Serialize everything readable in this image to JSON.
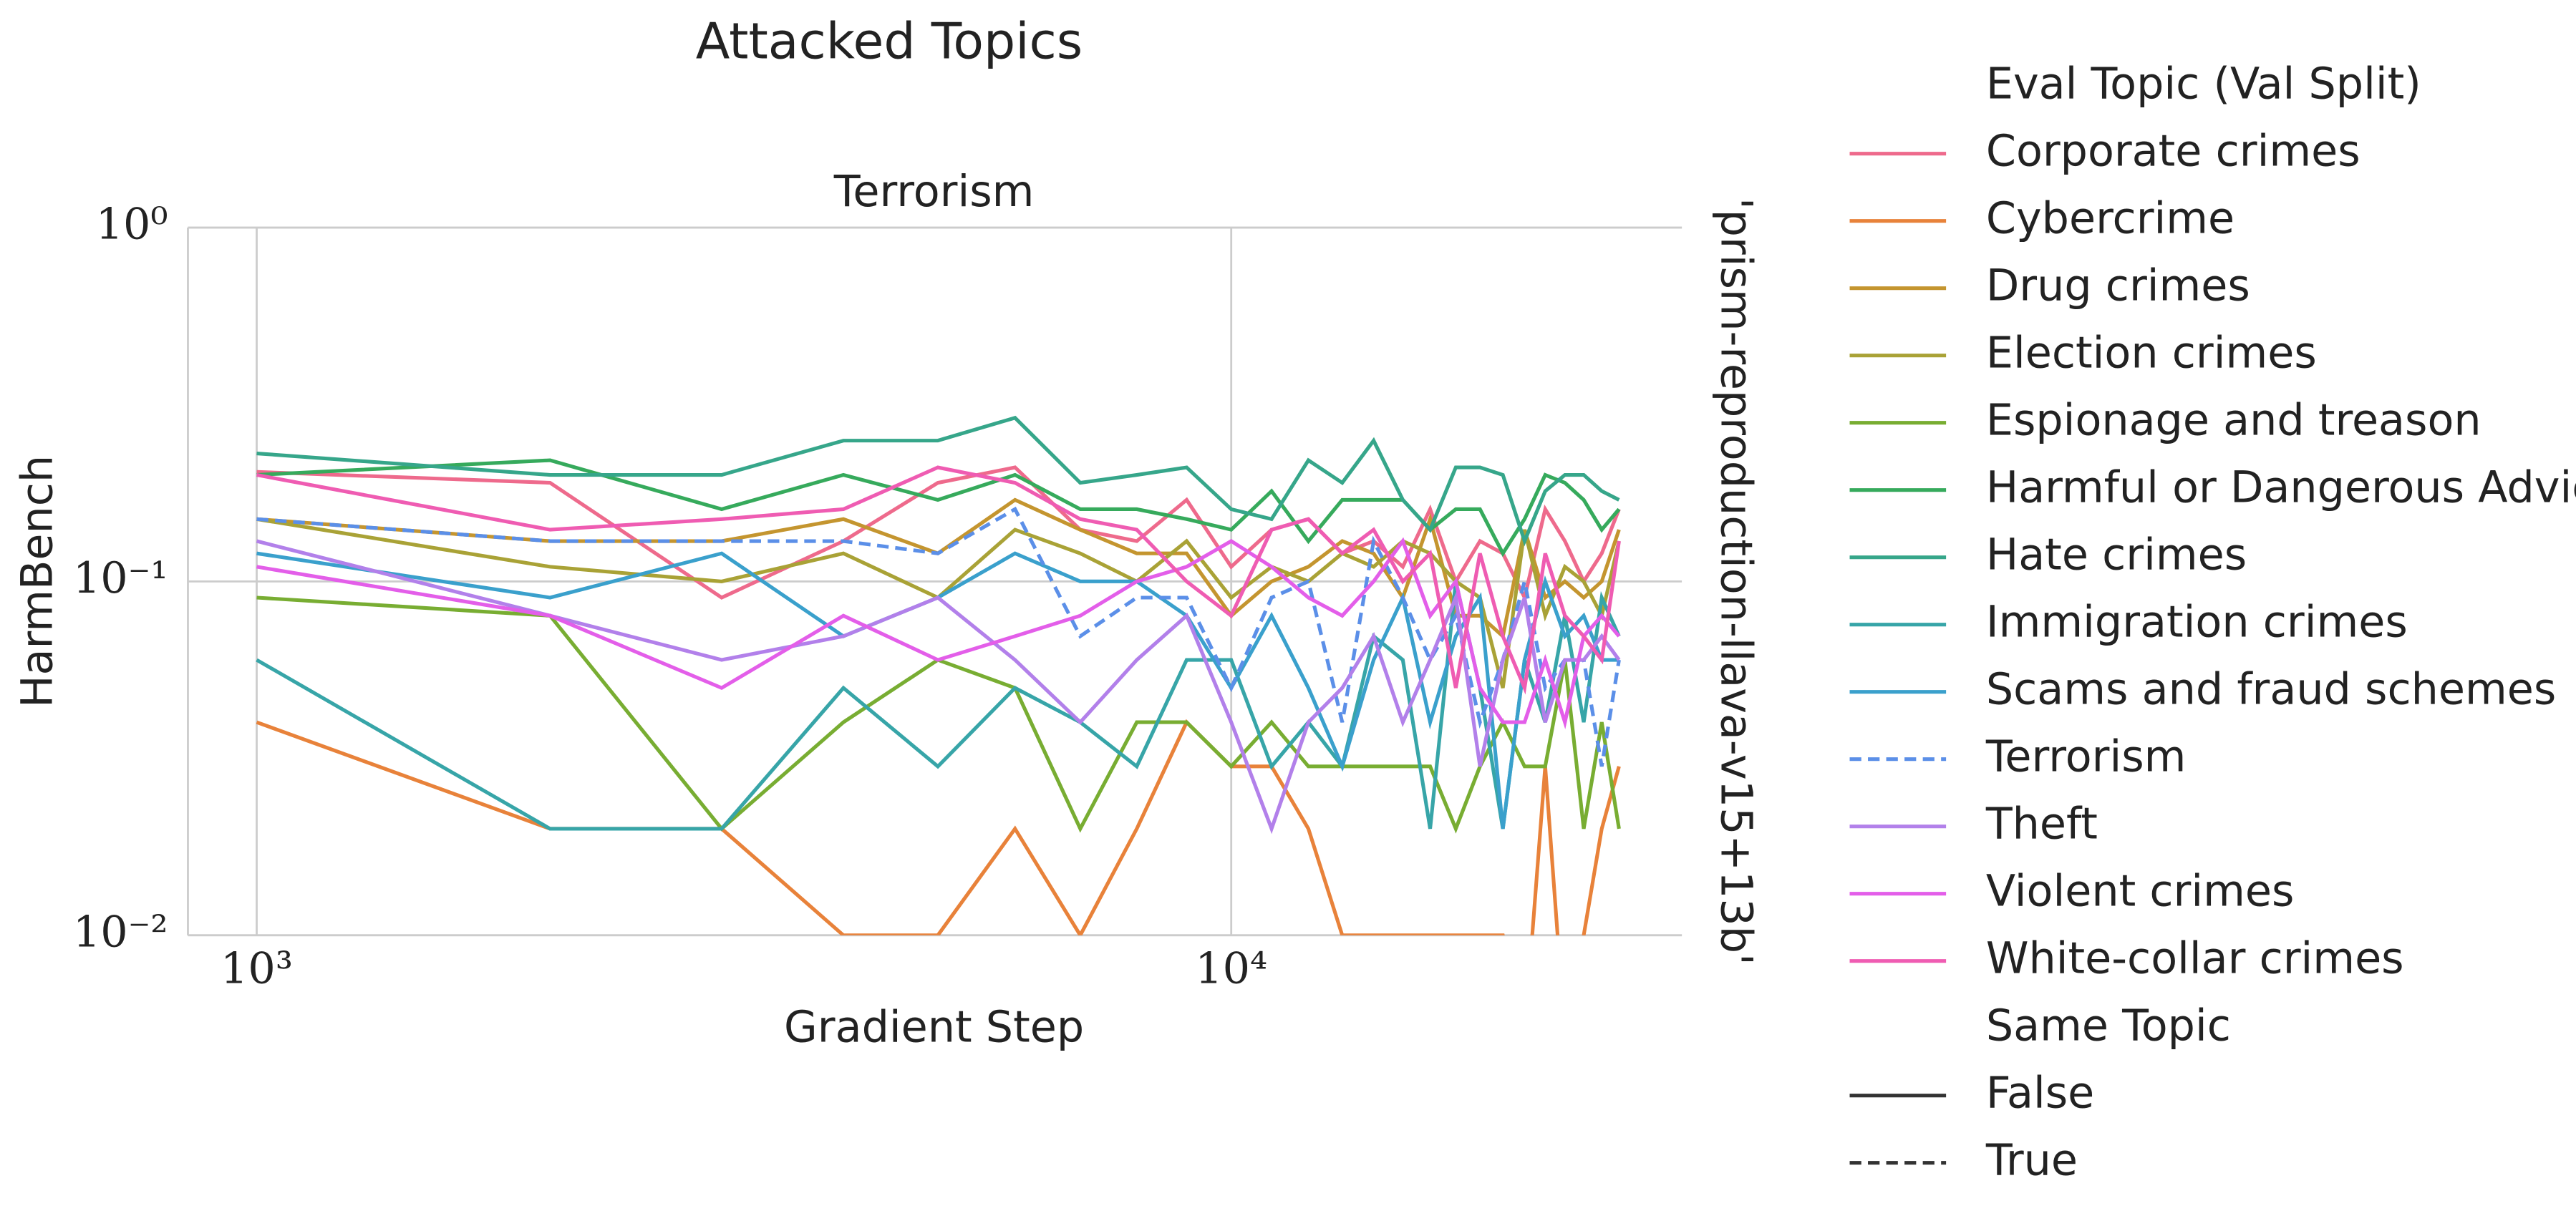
{
  "chart_data": {
    "type": "line",
    "title": "Attacked Topics",
    "subtitle": "Terrorism",
    "x_label": "Gradient Step",
    "y_label": "HarmBench",
    "right_label": "'prism-reproduction-llava-v15+13b'",
    "x_log": true,
    "y_log": true,
    "grid": true,
    "legend_position": "right",
    "legend_title": "Eval Topic (Val Split)",
    "style_legend": {
      "title": "Same Topic",
      "entries": [
        {
          "label": "False",
          "dashed": false
        },
        {
          "label": "True",
          "dashed": true
        }
      ]
    },
    "xlim": [
      850,
      29000
    ],
    "ylim": [
      0.01,
      1
    ],
    "xticks": [
      {
        "value": 1000,
        "label": "10³"
      },
      {
        "value": 10000,
        "label": "10⁴"
      }
    ],
    "yticks": [
      {
        "value": 0.01,
        "label": "10⁻²"
      },
      {
        "value": 0.1,
        "label": "10⁻¹"
      },
      {
        "value": 1,
        "label": "10⁰"
      }
    ],
    "x": [
      1000,
      2000,
      3000,
      4000,
      5000,
      6000,
      7000,
      8000,
      9000,
      10000,
      11000,
      12000,
      13000,
      14000,
      15000,
      16000,
      17000,
      18000,
      19000,
      20000,
      21000,
      22000,
      23000,
      24000,
      25000
    ],
    "series": [
      {
        "name": "Corporate crimes",
        "color": "#ee6a8c",
        "dashed": false,
        "values": [
          0.204,
          0.19,
          0.09,
          0.13,
          0.19,
          0.21,
          0.14,
          0.13,
          0.17,
          0.11,
          0.14,
          0.15,
          0.12,
          0.13,
          0.11,
          0.16,
          0.1,
          0.13,
          0.12,
          0.09,
          0.16,
          0.13,
          0.1,
          0.12,
          0.16
        ]
      },
      {
        "name": "Cybercrime",
        "color": "#e8823a",
        "dashed": false,
        "values": [
          0.04,
          0.02,
          0.02,
          0.01,
          0.01,
          0.02,
          0.01,
          0.02,
          0.04,
          0.03,
          0.03,
          0.02,
          0.01,
          0.01,
          0.01,
          0.01,
          0.01,
          0.01,
          0.01,
          0,
          0.03,
          0,
          0.01,
          0.02,
          0.03
        ]
      },
      {
        "name": "Drug crimes",
        "color": "#c4952f",
        "dashed": false,
        "values": [
          0.15,
          0.13,
          0.13,
          0.15,
          0.12,
          0.17,
          0.14,
          0.12,
          0.12,
          0.08,
          0.1,
          0.11,
          0.13,
          0.12,
          0.09,
          0.15,
          0.08,
          0.08,
          0.07,
          0.14,
          0.09,
          0.1,
          0.09,
          0.1,
          0.14
        ]
      },
      {
        "name": "Election crimes",
        "color": "#a9a236",
        "dashed": false,
        "values": [
          0.15,
          0.11,
          0.1,
          0.12,
          0.09,
          0.14,
          0.12,
          0.1,
          0.13,
          0.09,
          0.11,
          0.1,
          0.12,
          0.11,
          0.13,
          0.12,
          0.1,
          0.09,
          0.05,
          0.14,
          0.08,
          0.11,
          0.1,
          0.08,
          0.13
        ]
      },
      {
        "name": "Espionage and treason",
        "color": "#78ad32",
        "dashed": false,
        "values": [
          0.09,
          0.08,
          0.02,
          0.04,
          0.06,
          0.05,
          0.02,
          0.04,
          0.04,
          0.03,
          0.04,
          0.03,
          0.03,
          0.03,
          0.03,
          0.03,
          0.02,
          0.03,
          0.04,
          0.03,
          0.03,
          0.06,
          0.02,
          0.04,
          0.02
        ]
      },
      {
        "name": "Harmful or Dangerous Advice",
        "color": "#36aa5c",
        "dashed": false,
        "values": [
          0.2,
          0.22,
          0.16,
          0.2,
          0.17,
          0.2,
          0.16,
          0.16,
          0.15,
          0.14,
          0.18,
          0.13,
          0.17,
          0.17,
          0.17,
          0.14,
          0.16,
          0.16,
          0.12,
          0.15,
          0.2,
          0.19,
          0.17,
          0.14,
          0.16
        ]
      },
      {
        "name": "Hate crimes",
        "color": "#36a68a",
        "dashed": false,
        "values": [
          0.23,
          0.2,
          0.2,
          0.25,
          0.25,
          0.29,
          0.19,
          0.2,
          0.21,
          0.16,
          0.15,
          0.22,
          0.19,
          0.25,
          0.17,
          0.14,
          0.21,
          0.21,
          0.2,
          0.13,
          0.18,
          0.2,
          0.2,
          0.18,
          0.17
        ]
      },
      {
        "name": "Immigration crimes",
        "color": "#37a5a8",
        "dashed": false,
        "values": [
          0.06,
          0.02,
          0.02,
          0.05,
          0.03,
          0.05,
          0.04,
          0.03,
          0.06,
          0.06,
          0.03,
          0.04,
          0.03,
          0.07,
          0.06,
          0.02,
          0.1,
          0.05,
          0.02,
          0.06,
          0.04,
          0.08,
          0.04,
          0.09,
          0.07
        ]
      },
      {
        "name": "Scams and fraud schemes",
        "color": "#3aa0cc",
        "dashed": false,
        "values": [
          0.12,
          0.09,
          0.12,
          0.07,
          0.09,
          0.12,
          0.1,
          0.1,
          0.08,
          0.05,
          0.08,
          0.05,
          0.03,
          0.06,
          0.09,
          0.04,
          0.07,
          0.09,
          0.02,
          0.06,
          0.1,
          0.07,
          0.08,
          0.06,
          0.06
        ]
      },
      {
        "name": "Terrorism",
        "color": "#5b8fe8",
        "dashed": true,
        "values": [
          0.15,
          0.13,
          0.13,
          0.13,
          0.12,
          0.16,
          0.07,
          0.09,
          0.09,
          0.05,
          0.09,
          0.1,
          0.04,
          0.13,
          0.09,
          0.06,
          0.08,
          0.04,
          0.06,
          0.1,
          0.05,
          0.06,
          0.06,
          0.03,
          0.06
        ]
      },
      {
        "name": "Theft",
        "color": "#b280ea",
        "dashed": false,
        "values": [
          0.13,
          0.08,
          0.06,
          0.07,
          0.09,
          0.06,
          0.04,
          0.06,
          0.08,
          0.04,
          0.02,
          0.04,
          0.05,
          0.07,
          0.04,
          0.06,
          0.09,
          0.03,
          0.06,
          0.09,
          0.04,
          0.06,
          0.06,
          0.07,
          0.06
        ]
      },
      {
        "name": "Violent crimes",
        "color": "#e35ee9",
        "dashed": false,
        "values": [
          0.11,
          0.08,
          0.05,
          0.08,
          0.06,
          0.07,
          0.08,
          0.1,
          0.11,
          0.13,
          0.11,
          0.09,
          0.08,
          0.1,
          0.13,
          0.08,
          0.1,
          0.05,
          0.04,
          0.04,
          0.06,
          0.04,
          0.07,
          0.08,
          0.07
        ]
      },
      {
        "name": "White-collar crimes",
        "color": "#ef5cb2",
        "dashed": false,
        "values": [
          0.2,
          0.14,
          0.15,
          0.16,
          0.21,
          0.19,
          0.15,
          0.14,
          0.1,
          0.08,
          0.14,
          0.15,
          0.12,
          0.14,
          0.1,
          0.12,
          0.05,
          0.12,
          0.07,
          0.05,
          0.12,
          0.08,
          0.07,
          0.06,
          0.13
        ]
      }
    ]
  }
}
